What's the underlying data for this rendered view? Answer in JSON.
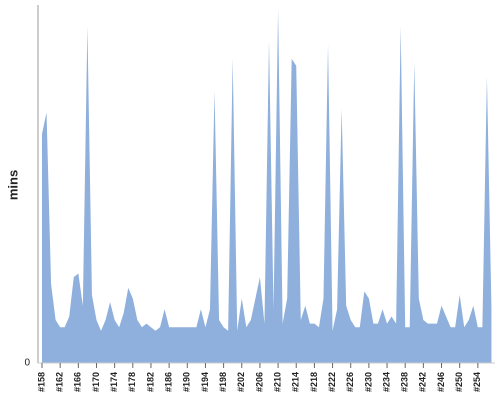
{
  "chart_data": {
    "type": "area",
    "y_label": "mins",
    "color": "#8fb0dc",
    "categories": [
      "#158",
      null,
      null,
      null,
      "#162",
      null,
      null,
      null,
      "#166",
      null,
      null,
      null,
      "#170",
      null,
      null,
      null,
      "#174",
      null,
      null,
      null,
      "#178",
      null,
      null,
      null,
      "#182",
      null,
      null,
      null,
      "#186",
      null,
      null,
      null,
      "#190",
      null,
      null,
      null,
      "#194",
      null,
      null,
      null,
      "#198",
      null,
      null,
      null,
      "#202",
      null,
      null,
      null,
      "#206",
      null,
      null,
      null,
      "#210",
      null,
      null,
      null,
      "#214",
      null,
      null,
      null,
      "#218",
      null,
      null,
      null,
      "#222",
      null,
      null,
      null,
      "#226",
      null,
      null,
      null,
      "#230",
      null,
      null,
      null,
      "#234",
      null,
      null,
      null,
      "#238",
      null,
      null,
      null,
      "#242",
      null,
      null,
      null,
      "#246",
      null,
      null,
      null,
      "#250",
      null,
      null,
      null,
      "#254",
      null,
      null,
      null
    ],
    "values": [
      64,
      70,
      22,
      12,
      10,
      10,
      13,
      24,
      25,
      16,
      94,
      19,
      12,
      9,
      12,
      17,
      12,
      10,
      14,
      21,
      18,
      12,
      10,
      11,
      10,
      9,
      10,
      15,
      10,
      10,
      10,
      10,
      10,
      10,
      10,
      15,
      10,
      15,
      76,
      12,
      10,
      9,
      85,
      9,
      18,
      10,
      12,
      18,
      24,
      11,
      90,
      15,
      99,
      11,
      18,
      85,
      83,
      12,
      16,
      11,
      11,
      10,
      18,
      89,
      9,
      15,
      71,
      16,
      12,
      10,
      10,
      20,
      18,
      11,
      11,
      15,
      11,
      13,
      11,
      94,
      10,
      10,
      84,
      18,
      12,
      11,
      11,
      11,
      16,
      13,
      10,
      10,
      19,
      10,
      12,
      16,
      10,
      10,
      80,
      15
    ],
    "ylim": [
      0,
      100
    ],
    "yticks": [
      0
    ],
    "grid": false
  }
}
